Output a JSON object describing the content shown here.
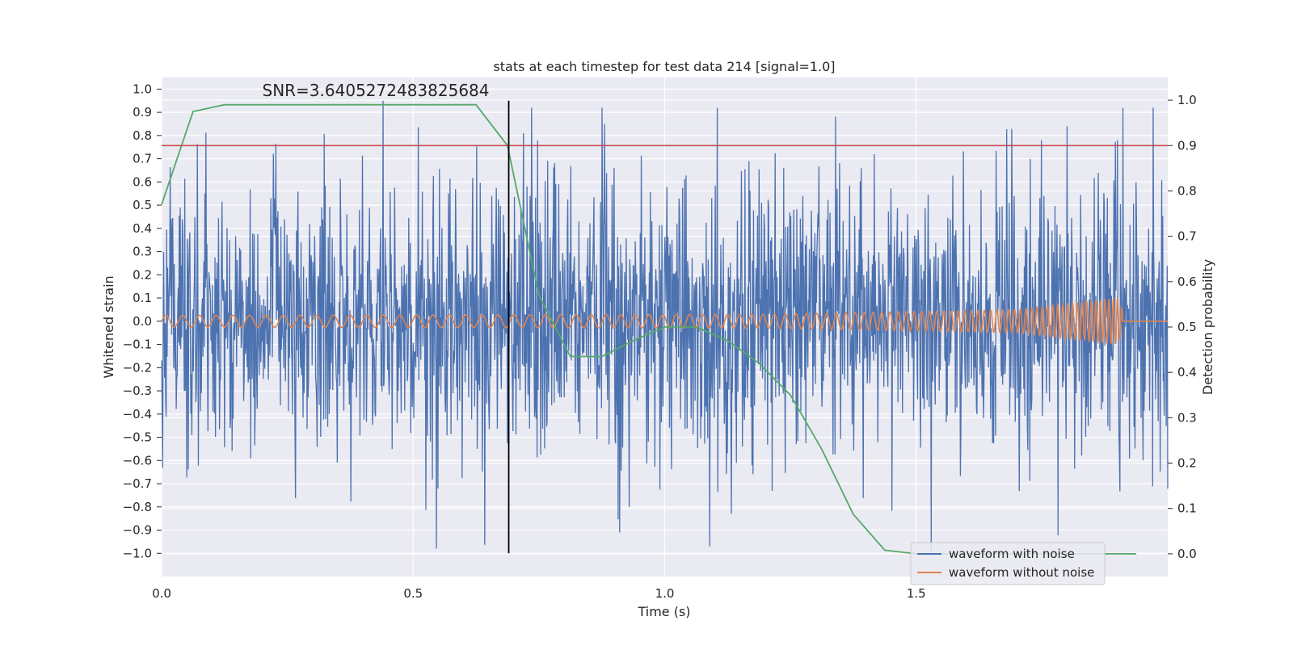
{
  "chart_data": {
    "type": "line",
    "title": "stats at each timestep for test data 214 [signal=1.0]",
    "xlabel": "Time (s)",
    "ylabel": "Whitened strain",
    "y2label": "Detection probability",
    "xlim": [
      0.0,
      2.0
    ],
    "ylim": [
      -1.1,
      1.05
    ],
    "y2lim": [
      -0.05,
      1.05
    ],
    "x_ticks": [
      0.0,
      0.5,
      1.0,
      1.5
    ],
    "x_tick_labels": [
      "0.0",
      "0.5",
      "1.0",
      "1.5"
    ],
    "y_ticks": [
      1.0,
      0.9,
      0.8,
      0.7,
      0.6,
      0.5,
      0.4,
      0.3,
      0.2,
      0.1,
      0.0,
      -0.1,
      -0.2,
      -0.3,
      -0.4,
      -0.5,
      -0.6,
      -0.7,
      -0.8,
      -0.9,
      -1.0
    ],
    "y_tick_labels": [
      "1.0",
      "0.9",
      "0.8",
      "0.7",
      "0.6",
      "0.5",
      "0.4",
      "0.3",
      "0.2",
      "0.1",
      "0.0",
      "−0.1",
      "−0.2",
      "−0.3",
      "−0.4",
      "−0.5",
      "−0.6",
      "−0.7",
      "−0.8",
      "−0.9",
      "−1.0"
    ],
    "y2_ticks": [
      1.0,
      0.9,
      0.8,
      0.7,
      0.6,
      0.5,
      0.4,
      0.3,
      0.2,
      0.1,
      0.0
    ],
    "y2_tick_labels": [
      "1.0",
      "0.9",
      "0.8",
      "0.7",
      "0.6",
      "0.5",
      "0.4",
      "0.3",
      "0.2",
      "0.1",
      "0.0"
    ],
    "grid": true,
    "legend_position": "lower-right",
    "annotation": "SNR=3.6405272483825684",
    "annotation_anchor": {
      "x": 0.2,
      "y": 0.97
    },
    "series": [
      {
        "name": "waveform with noise",
        "color": "#4c72b0",
        "axis": "left",
        "x_range": [
          0.0,
          2.0
        ],
        "samples": 2000,
        "amplitude_std": 0.3,
        "notable_peaks": [
          {
            "x": 0.44,
            "y": 0.95
          },
          {
            "x": 0.88,
            "y": 0.85
          },
          {
            "x": 1.8,
            "y": 0.84
          },
          {
            "x": 1.09,
            "y": -0.97
          },
          {
            "x": 1.53,
            "y": -1.0
          },
          {
            "x": 0.91,
            "y": -0.91
          }
        ]
      },
      {
        "name": "waveform without noise",
        "color": "#dd8452",
        "axis": "left",
        "description_points": [
          {
            "x": 0.0,
            "amplitude": 0.025
          },
          {
            "x": 1.2,
            "amplitude": 0.03
          },
          {
            "x": 1.7,
            "amplitude": 0.05
          },
          {
            "x": 1.9,
            "amplitude": 0.1
          },
          {
            "x": 1.92,
            "amplitude": 0.0
          },
          {
            "x": 2.0,
            "amplitude": 0.0
          }
        ],
        "frequency_start_hz": 30,
        "frequency_end_hz": 120,
        "merger_time": 1.9
      },
      {
        "name": "detection probability",
        "color": "#55a868",
        "axis": "right",
        "x": [
          0.0,
          0.0625,
          0.125,
          0.1875,
          0.25,
          0.3125,
          0.375,
          0.4375,
          0.5,
          0.5625,
          0.625,
          0.6875,
          0.75,
          0.8125,
          0.875,
          0.9375,
          1.0,
          1.0625,
          1.125,
          1.1875,
          1.25,
          1.3125,
          1.375,
          1.4375,
          1.5,
          1.5625,
          1.625,
          1.6875,
          1.75,
          1.8125,
          1.875,
          1.9375
        ],
        "values": [
          0.77,
          0.975,
          0.99,
          0.99,
          0.99,
          0.99,
          0.99,
          0.99,
          0.99,
          0.99,
          0.99,
          0.9,
          0.57,
          0.435,
          0.435,
          0.47,
          0.5,
          0.5,
          0.47,
          0.42,
          0.35,
          0.23,
          0.087,
          0.008,
          0.0,
          0.0,
          0.0,
          0.0,
          0.0,
          0.0,
          0.0,
          0.0
        ]
      }
    ],
    "hlines": [
      {
        "axis": "right",
        "y": 0.9,
        "color": "#c44e52"
      }
    ],
    "vlines": [
      {
        "axis": "left",
        "x": 0.69,
        "ymin": -1.0,
        "ymax": 0.95,
        "color": "#000000"
      }
    ],
    "legend_entries": [
      "waveform with noise",
      "waveform without noise"
    ]
  }
}
